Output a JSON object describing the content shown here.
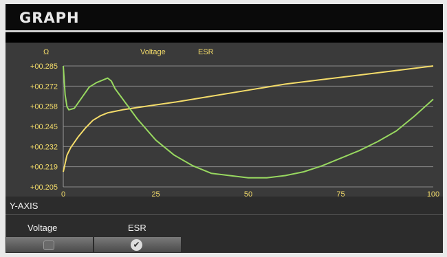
{
  "header": {
    "title": "GRAPH"
  },
  "chart_data": {
    "type": "line",
    "ylabel": "Ω",
    "legend": [
      "Voltage",
      "ESR"
    ],
    "legend_placement": "top-center",
    "xlim": [
      0,
      100
    ],
    "ylim": [
      0.205,
      0.285
    ],
    "x_ticks": [
      "0",
      "25",
      "50",
      "75",
      "100"
    ],
    "y_ticks": [
      "+00.205",
      "+00.219",
      "+00.232",
      "+00.245",
      "+00.258",
      "+00.272",
      "+00.285"
    ],
    "grid": true,
    "series": [
      {
        "name": "Voltage",
        "color": "#f4dc6a",
        "x": [
          0,
          1,
          2,
          4,
          6,
          8,
          10,
          12,
          14,
          16,
          20,
          30,
          40,
          50,
          60,
          70,
          80,
          90,
          100
        ],
        "y": [
          0.215,
          0.226,
          0.231,
          0.238,
          0.244,
          0.249,
          0.252,
          0.254,
          0.255,
          0.256,
          0.2575,
          0.261,
          0.265,
          0.269,
          0.273,
          0.276,
          0.279,
          0.282,
          0.285
        ]
      },
      {
        "name": "ESR",
        "color": "#98d860",
        "x": [
          0,
          0.5,
          1,
          1.5,
          3,
          5,
          7,
          9,
          11,
          12,
          13,
          14,
          17,
          20,
          25,
          30,
          35,
          40,
          45,
          50,
          55,
          60,
          65,
          70,
          75,
          80,
          85,
          90,
          95,
          100
        ],
        "y": [
          0.285,
          0.266,
          0.258,
          0.256,
          0.257,
          0.264,
          0.271,
          0.274,
          0.276,
          0.277,
          0.275,
          0.27,
          0.26,
          0.25,
          0.236,
          0.226,
          0.219,
          0.214,
          0.2125,
          0.211,
          0.211,
          0.2125,
          0.215,
          0.219,
          0.224,
          0.229,
          0.235,
          0.242,
          0.252,
          0.263
        ]
      }
    ]
  },
  "yaxis": {
    "title": "Y-AXIS",
    "options": [
      {
        "label": "Voltage",
        "checked": false
      },
      {
        "label": "ESR",
        "checked": true
      }
    ]
  },
  "icons": {
    "unchecked": "checkbox-unchecked-icon",
    "checked": "checkmark-icon",
    "check_glyph": "✔"
  }
}
